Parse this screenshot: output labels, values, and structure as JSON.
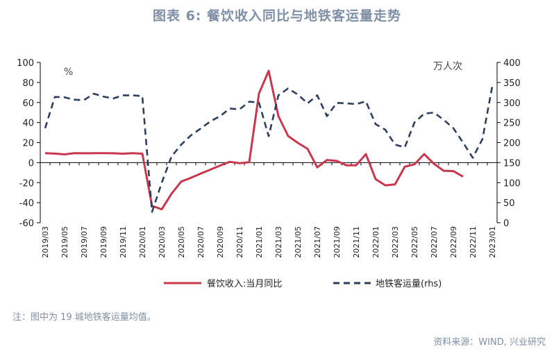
{
  "title": "图表 6:  餐饮收入同比与地铁客运量走势",
  "note": "注：图中为 19 城地铁客运量均值。",
  "source": "资料来源：WIND, 兴业研究",
  "colors": {
    "title": "#7f8fa6",
    "series1": "#c8374d",
    "series2": "#2d3e5c"
  },
  "chart_data": {
    "type": "line",
    "x": [
      "2019/03",
      "2019/04",
      "2019/05",
      "2019/06",
      "2019/07",
      "2019/08",
      "2019/09",
      "2019/10",
      "2019/11",
      "2019/12",
      "2020/01",
      "2020/02",
      "2020/03",
      "2020/04",
      "2020/05",
      "2020/06",
      "2020/07",
      "2020/08",
      "2020/09",
      "2020/10",
      "2020/11",
      "2020/12",
      "2021/01",
      "2021/02",
      "2021/03",
      "2021/04",
      "2021/05",
      "2021/06",
      "2021/07",
      "2021/08",
      "2021/09",
      "2021/10",
      "2021/11",
      "2021/12",
      "2022/01",
      "2022/02",
      "2022/03",
      "2022/04",
      "2022/05",
      "2022/06",
      "2022/07",
      "2022/08",
      "2022/09",
      "2022/10",
      "2022/11",
      "2022/12",
      "2023/01"
    ],
    "x_tick_labels": [
      "2019/03",
      "2019/05",
      "2019/07",
      "2019/09",
      "2019/11",
      "2020/01",
      "2020/03",
      "2020/05",
      "2020/07",
      "2020/09",
      "2020/11",
      "2021/01",
      "2021/03",
      "2021/05",
      "2021/07",
      "2021/09",
      "2021/11",
      "2022/01",
      "2022/03",
      "2022/05",
      "2022/07",
      "2022/09",
      "2022/11",
      "2023/01"
    ],
    "left_unit": "%",
    "right_unit": "万人次",
    "ylim_left": [
      -60,
      100
    ],
    "yticks_left": [
      "100",
      "80",
      "60",
      "40",
      "20",
      "0",
      "-20",
      "-40",
      "-60"
    ],
    "ylim_right": [
      0,
      400
    ],
    "yticks_right": [
      "400",
      "350",
      "300",
      "250",
      "200",
      "150",
      "100",
      "50",
      "0"
    ],
    "series": [
      {
        "name": "餐饮收入:当月同比",
        "axis": "left",
        "style": "solid",
        "values": [
          9.4,
          9.0,
          8.2,
          9.4,
          9.3,
          9.4,
          9.5,
          9.3,
          8.9,
          9.4,
          8.9,
          -43.1,
          -46.6,
          -31.1,
          -18.9,
          -15.2,
          -11.0,
          -7.0,
          -2.9,
          0.8,
          -0.6,
          0.4,
          68.9,
          91.6,
          46.4,
          26.6,
          19.7,
          13.8,
          -4.7,
          2.6,
          1.7,
          -2.7,
          -2.7,
          8.5,
          -16.4,
          -22.7,
          -21.8,
          -4.1,
          -1.7,
          8.5,
          -1.1,
          -8.1,
          -8.5,
          -14.0,
          null,
          null,
          null
        ]
      },
      {
        "name": "地铁客运量(rhs)",
        "axis": "right",
        "style": "dashed",
        "values": [
          236,
          314,
          313,
          307,
          306,
          322,
          315,
          310,
          318,
          318,
          316,
          27,
          100,
          165,
          195,
          218,
          235,
          253,
          266,
          285,
          283,
          302,
          300,
          216,
          318,
          335,
          320,
          298,
          318,
          266,
          299,
          298,
          296,
          303,
          246,
          232,
          195,
          188,
          250,
          272,
          275,
          257,
          236,
          200,
          162,
          209,
          340
        ]
      }
    ]
  }
}
